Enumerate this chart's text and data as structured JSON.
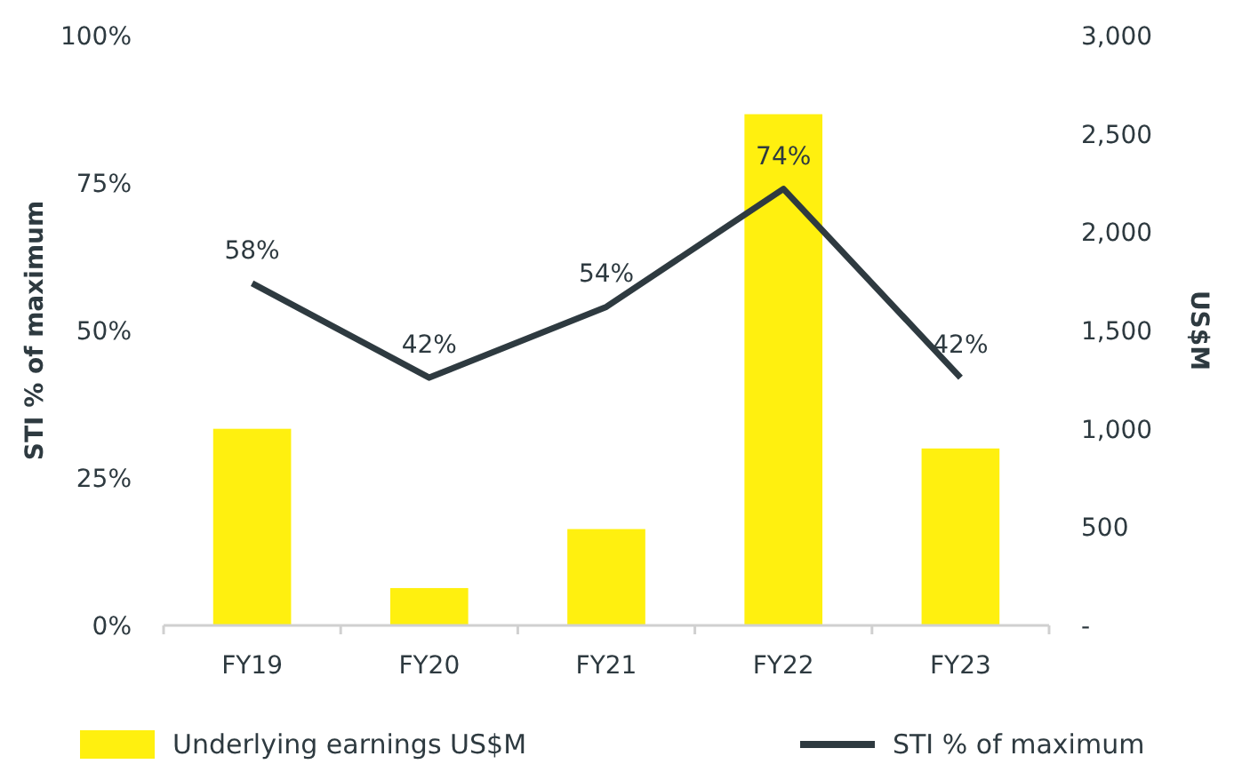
{
  "chart_data": {
    "type": "bar",
    "categories": [
      "FY19",
      "FY20",
      "FY21",
      "FY22",
      "FY23"
    ],
    "series": [
      {
        "name": "Underlying earnings US$M",
        "axis": "y2",
        "color": "#fff00f",
        "values": [
          1000,
          190,
          490,
          2600,
          900
        ]
      },
      {
        "name": "STI % of maximum",
        "type": "line",
        "color": "#2e3a40",
        "values": [
          58,
          42,
          54,
          74,
          42
        ],
        "value_labels": [
          "58%",
          "42%",
          "54%",
          "74%",
          "42%"
        ]
      }
    ],
    "ylabel": "STI % of maximum",
    "y2label": "US$M",
    "ylim": [
      0,
      100
    ],
    "yticks": [
      {
        "value": 0,
        "label": "0%"
      },
      {
        "value": 25,
        "label": "25%"
      },
      {
        "value": 50,
        "label": "50%"
      },
      {
        "value": 75,
        "label": "75%"
      },
      {
        "value": 100,
        "label": "100%"
      }
    ],
    "y2lim": [
      0,
      3000
    ],
    "y2ticks": [
      {
        "value": 0,
        "label": "-"
      },
      500,
      {
        "value": 1000,
        "label": "1,000"
      },
      {
        "value": 1500,
        "label": "1,500"
      },
      {
        "value": 2000,
        "label": "2,000"
      },
      {
        "value": 2500,
        "label": "2,500"
      },
      {
        "value": 3000,
        "label": "3,000"
      }
    ],
    "legend": "bottom",
    "grid": false,
    "marker": "none",
    "line_style": "solid"
  }
}
